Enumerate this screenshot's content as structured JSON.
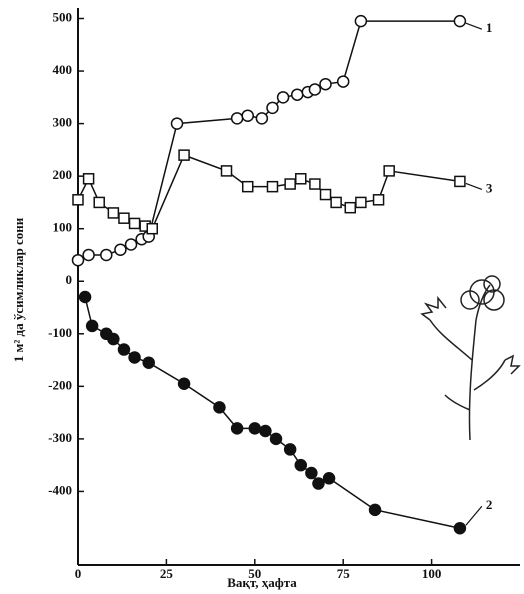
{
  "chart_data": {
    "type": "line",
    "xlabel": "Вақт, ҳафта",
    "ylabel": "1 м² да ўсимликлар сони",
    "xlim": [
      0,
      125
    ],
    "xticks": [
      0,
      25,
      50,
      75,
      100
    ],
    "ylim": [
      -540,
      520
    ],
    "yticks": [
      -400,
      -300,
      -200,
      -100,
      0,
      100,
      200,
      300,
      400,
      500
    ],
    "series": [
      {
        "name": "1",
        "color": "#111111",
        "marker": "open-circle",
        "x": [
          0,
          3,
          8,
          12,
          15,
          18,
          20,
          28,
          45,
          48,
          52,
          55,
          58,
          62,
          65,
          67,
          70,
          75,
          80,
          108
        ],
        "values": [
          40,
          50,
          50,
          60,
          70,
          80,
          85,
          300,
          310,
          315,
          310,
          330,
          350,
          355,
          360,
          365,
          375,
          380,
          495,
          495
        ]
      },
      {
        "name": "2",
        "color": "#111111",
        "marker": "filled-circle",
        "x": [
          2,
          4,
          8,
          10,
          13,
          16,
          20,
          30,
          40,
          45,
          50,
          53,
          56,
          60,
          63,
          66,
          68,
          71,
          84,
          108
        ],
        "values": [
          -30,
          -85,
          -100,
          -110,
          -130,
          -145,
          -155,
          -195,
          -240,
          -280,
          -280,
          -285,
          -300,
          -320,
          -350,
          -365,
          -385,
          -375,
          -435,
          -470
        ]
      },
      {
        "name": "3",
        "color": "#111111",
        "marker": "open-square",
        "x": [
          0,
          3,
          6,
          10,
          13,
          16,
          19,
          21,
          30,
          42,
          48,
          55,
          60,
          63,
          67,
          70,
          73,
          77,
          80,
          85,
          88,
          108
        ],
        "values": [
          155,
          195,
          150,
          130,
          120,
          110,
          105,
          100,
          240,
          210,
          180,
          180,
          185,
          195,
          185,
          165,
          150,
          140,
          150,
          155,
          210,
          190
        ]
      }
    ]
  }
}
